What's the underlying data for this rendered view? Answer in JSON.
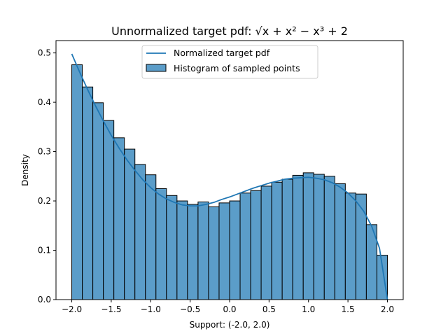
{
  "chart_data": {
    "type": "bar",
    "title": "Unnormalized target pdf: √x + x² − x³ + 2",
    "xlabel": "Support: (-2.0, 2.0)",
    "ylabel": "Density",
    "xlim": [
      -2.2,
      2.2
    ],
    "ylim": [
      0.0,
      0.525
    ],
    "x_ticks": [
      -2.0,
      -1.5,
      -1.0,
      -0.5,
      0.0,
      0.5,
      1.0,
      1.5,
      2.0
    ],
    "x_tick_labels": [
      "−2.0",
      "−1.5",
      "−1.0",
      "−0.5",
      "0.0",
      "0.5",
      "1.0",
      "1.5",
      "2.0"
    ],
    "y_ticks": [
      0.0,
      0.1,
      0.2,
      0.3,
      0.4,
      0.5
    ],
    "y_tick_labels": [
      "0.0",
      "0.1",
      "0.2",
      "0.3",
      "0.4",
      "0.5"
    ],
    "grid": false,
    "legend": {
      "position": "upper-center",
      "entries": [
        "Normalized target pdf",
        "Histogram of sampled points"
      ]
    },
    "histogram": {
      "name": "Histogram of sampled points",
      "bin_start": -2.0,
      "bin_end": 2.0,
      "values": [
        0.476,
        0.431,
        0.399,
        0.363,
        0.328,
        0.305,
        0.274,
        0.253,
        0.225,
        0.211,
        0.2,
        0.193,
        0.198,
        0.188,
        0.196,
        0.2,
        0.216,
        0.221,
        0.23,
        0.238,
        0.244,
        0.252,
        0.257,
        0.254,
        0.25,
        0.235,
        0.216,
        0.214,
        0.152,
        0.09
      ],
      "color": "#5b9dc9",
      "edge_color": "#000000"
    },
    "series": [
      {
        "name": "Normalized target pdf",
        "x": [
          -2.0,
          -1.9,
          -1.8,
          -1.7,
          -1.6,
          -1.5,
          -1.4,
          -1.3,
          -1.2,
          -1.1,
          -1.0,
          -0.9,
          -0.8,
          -0.7,
          -0.6,
          -0.5,
          -0.4,
          -0.3,
          -0.2,
          -0.1,
          0.0,
          0.1,
          0.2,
          0.3,
          0.4,
          0.5,
          0.6,
          0.7,
          0.8,
          0.9,
          1.0,
          1.1,
          1.2,
          1.3,
          1.4,
          1.5,
          1.6,
          1.7,
          1.8,
          1.9,
          2.0
        ],
        "values": [
          0.498,
          0.461,
          0.426,
          0.393,
          0.362,
          0.333,
          0.307,
          0.283,
          0.262,
          0.243,
          0.227,
          0.214,
          0.204,
          0.197,
          0.192,
          0.19,
          0.19,
          0.193,
          0.197,
          0.203,
          0.208,
          0.214,
          0.22,
          0.226,
          0.231,
          0.236,
          0.24,
          0.244,
          0.246,
          0.247,
          0.248,
          0.246,
          0.243,
          0.237,
          0.228,
          0.216,
          0.2,
          0.179,
          0.149,
          0.104,
          0.0
        ],
        "color": "#1f77b4"
      }
    ]
  }
}
